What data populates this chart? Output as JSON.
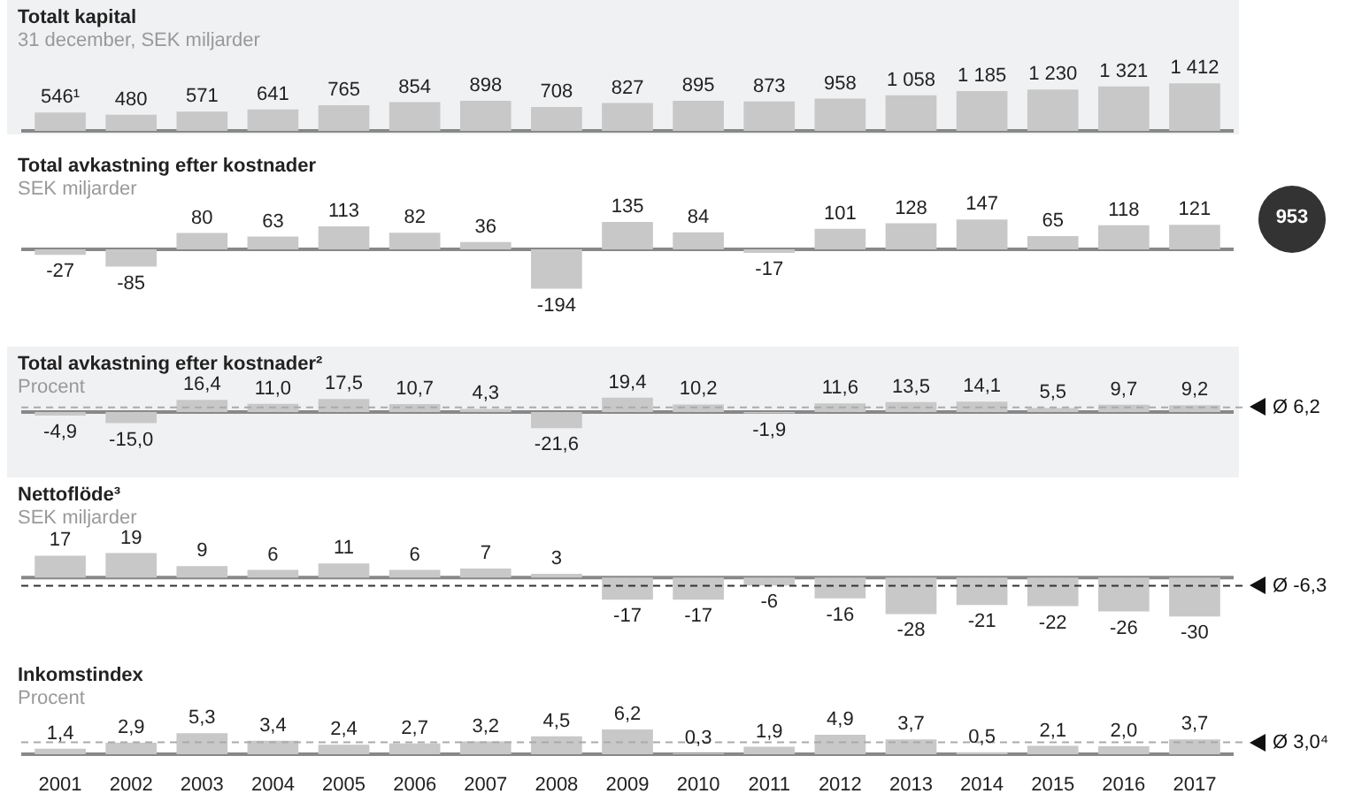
{
  "chart_data": [
    {
      "type": "bar",
      "title": "Totalt kapital",
      "subtitle": "31 december, SEK miljarder",
      "categories": [
        "2001",
        "2002",
        "2003",
        "2004",
        "2005",
        "2006",
        "2007",
        "2008",
        "2009",
        "2010",
        "2011",
        "2012",
        "2013",
        "2014",
        "2015",
        "2016",
        "2017"
      ],
      "values": [
        546,
        480,
        571,
        641,
        765,
        854,
        898,
        708,
        827,
        895,
        873,
        958,
        1058,
        1185,
        1230,
        1321,
        1412
      ],
      "value_labels": [
        "546¹",
        "480",
        "571",
        "641",
        "765",
        "854",
        "898",
        "708",
        "827",
        "895",
        "873",
        "958",
        "1 058",
        "1 185",
        "1 230",
        "1 321",
        "1 412"
      ],
      "color": "#c8c8c8",
      "tick_labels": false
    },
    {
      "type": "bar",
      "title": "Total avkastning efter kostnader",
      "subtitle": "SEK miljarder",
      "categories": [
        "2001",
        "2002",
        "2003",
        "2004",
        "2005",
        "2006",
        "2007",
        "2008",
        "2009",
        "2010",
        "2011",
        "2012",
        "2013",
        "2014",
        "2015",
        "2016",
        "2017"
      ],
      "values": [
        -27,
        -85,
        80,
        63,
        113,
        82,
        36,
        -194,
        135,
        84,
        -17,
        101,
        128,
        147,
        65,
        118,
        121
      ],
      "value_labels": [
        "-27",
        "-85",
        "80",
        "63",
        "113",
        "82",
        "36",
        "-194",
        "135",
        "84",
        "-17",
        "101",
        "128",
        "147",
        "65",
        "118",
        "121"
      ],
      "color": "#c8c8c8",
      "tick_labels": false,
      "annotations": [
        "953"
      ]
    },
    {
      "type": "bar",
      "title": "Total avkastning efter kostnader²",
      "subtitle": "Procent",
      "categories": [
        "2001",
        "2002",
        "2003",
        "2004",
        "2005",
        "2006",
        "2007",
        "2008",
        "2009",
        "2010",
        "2011",
        "2012",
        "2013",
        "2014",
        "2015",
        "2016",
        "2017"
      ],
      "values": [
        -4.9,
        -15.0,
        16.4,
        11.0,
        17.5,
        10.7,
        4.3,
        -21.6,
        19.4,
        10.2,
        -1.9,
        11.6,
        13.5,
        14.1,
        5.5,
        9.7,
        9.2
      ],
      "value_labels": [
        "-4,9",
        "-15,0",
        "16,4",
        "11,0",
        "17,5",
        "10,7",
        "4,3",
        "-21,6",
        "19,4",
        "10,2",
        "-1,9",
        "11,6",
        "13,5",
        "14,1",
        "5,5",
        "9,7",
        "9,2"
      ],
      "color": "#c8c8c8",
      "tick_labels": false,
      "ref_lines": [
        {
          "axis": "y",
          "value": 6.2,
          "label": "Ø 6,2",
          "color": "#aaaaaa",
          "line_style": "dashed"
        }
      ]
    },
    {
      "type": "bar",
      "title": "Nettoflöde³",
      "subtitle": "SEK miljarder",
      "categories": [
        "2001",
        "2002",
        "2003",
        "2004",
        "2005",
        "2006",
        "2007",
        "2008",
        "2009",
        "2010",
        "2011",
        "2012",
        "2013",
        "2014",
        "2015",
        "2016",
        "2017"
      ],
      "values": [
        17,
        19,
        9,
        6,
        11,
        6,
        7,
        3,
        -17,
        -17,
        -6,
        -16,
        -28,
        -21,
        -22,
        -26,
        -30
      ],
      "value_labels": [
        "17",
        "19",
        "9",
        "6",
        "11",
        "6",
        "7",
        "3",
        "-17",
        "-17",
        "-6",
        "-16",
        "-28",
        "-21",
        "-22",
        "-26",
        "-30"
      ],
      "color": "#c8c8c8",
      "tick_labels": false,
      "ref_lines": [
        {
          "axis": "y",
          "value": -6.3,
          "label": "Ø -6,3",
          "color": "#333333",
          "line_style": "dashed"
        }
      ]
    },
    {
      "type": "bar",
      "title": "Inkomstindex",
      "subtitle": "Procent",
      "categories": [
        "2001",
        "2002",
        "2003",
        "2004",
        "2005",
        "2006",
        "2007",
        "2008",
        "2009",
        "2010",
        "2011",
        "2012",
        "2013",
        "2014",
        "2015",
        "2016",
        "2017"
      ],
      "values": [
        1.4,
        2.9,
        5.3,
        3.4,
        2.4,
        2.7,
        3.2,
        4.5,
        6.2,
        0.3,
        1.9,
        4.9,
        3.7,
        0.5,
        2.1,
        2.0,
        3.7
      ],
      "value_labels": [
        "1,4",
        "2,9",
        "5,3",
        "3,4",
        "2,4",
        "2,7",
        "3,2",
        "4,5",
        "6,2",
        "0,3",
        "1,9",
        "4,9",
        "3,7",
        "0,5",
        "2,1",
        "2,0",
        "3,7"
      ],
      "color": "#c8c8c8",
      "tick_labels": "x",
      "ref_lines": [
        {
          "axis": "y",
          "value": 3.0,
          "label": "Ø 3,0⁴",
          "color": "#aaaaaa",
          "line_style": "dashed"
        }
      ]
    }
  ]
}
